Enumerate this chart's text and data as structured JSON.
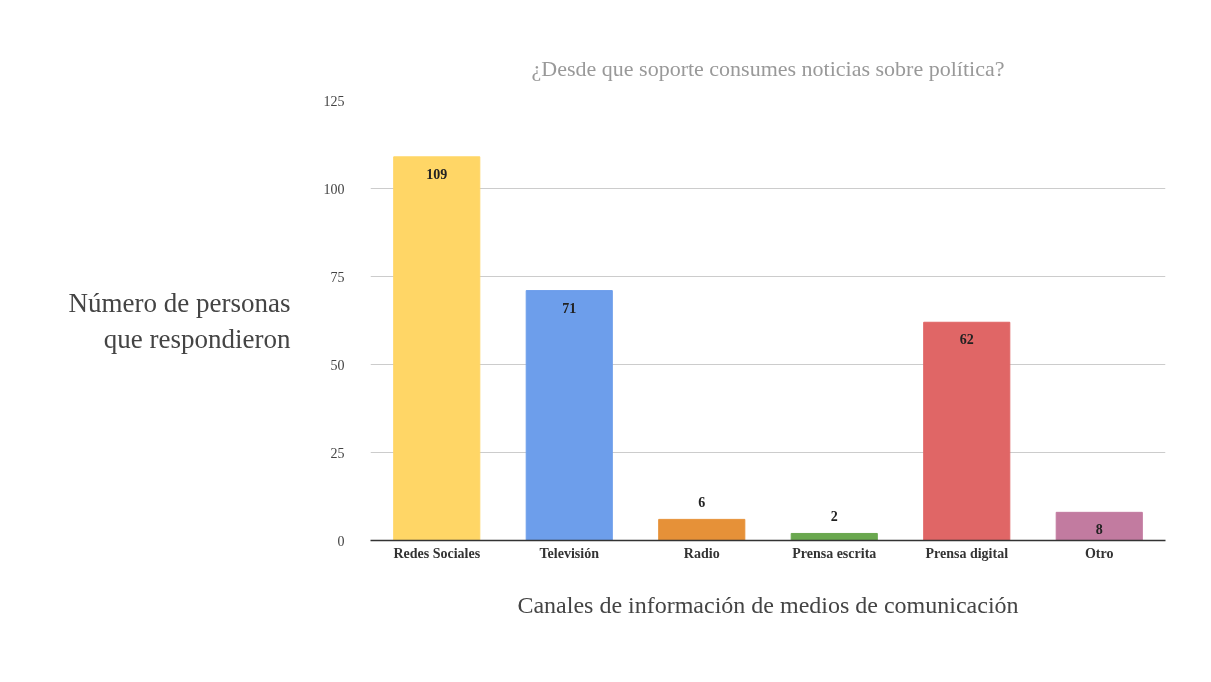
{
  "chart_data": {
    "type": "bar",
    "title": "¿Desde que soporte consumes noticias sobre política?",
    "xlabel": "Canales de información de medios de comunicación",
    "ylabel": "Número de personas que respondieron",
    "categories": [
      "Redes Sociales",
      "Televisión",
      "Radio",
      "Prensa escrita",
      "Prensa digital",
      "Otro"
    ],
    "values": [
      109,
      71,
      6,
      2,
      62,
      8
    ],
    "colors": [
      "#ffd666",
      "#6d9eeb",
      "#e69138",
      "#6aa84f",
      "#e06666",
      "#c27ba0"
    ],
    "ylim": [
      0,
      125
    ],
    "yticks": [
      0,
      25,
      50,
      75,
      100,
      125
    ],
    "grid": "y",
    "data_labels": true
  }
}
